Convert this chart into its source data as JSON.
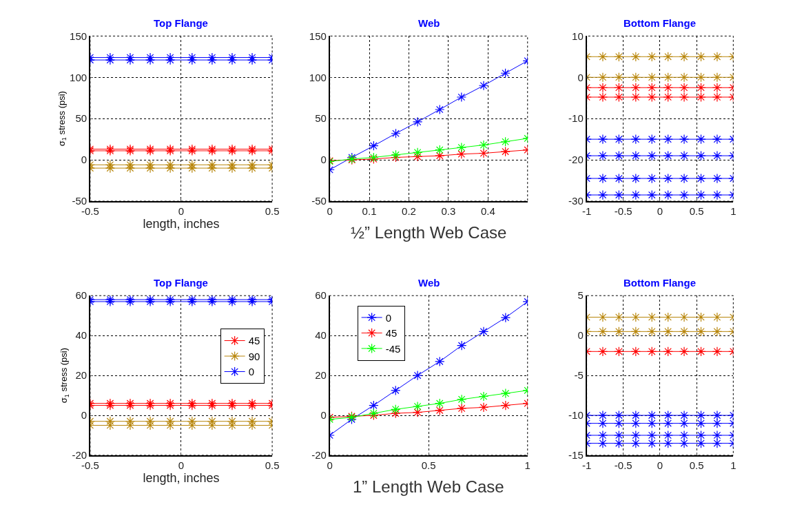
{
  "chart_data": [
    {
      "type": "line",
      "title": "Top Flange",
      "xlabel": "length, inches",
      "ylabel": "σ$_{1}$ stress (psi)",
      "xlim": [
        -0.5,
        0.5
      ],
      "xticks": [
        -0.5,
        0,
        0.5
      ],
      "ylim": [
        -50,
        150
      ],
      "yticks": [
        -50,
        0,
        50,
        100,
        150
      ],
      "grid": true,
      "marker": "cross",
      "line_style": "solid",
      "x": [
        -0.5,
        -0.39,
        -0.28,
        -0.17,
        -0.06,
        0.06,
        0.17,
        0.28,
        0.39,
        0.5
      ],
      "series": [
        {
          "color": "#0000ff",
          "values": [
            124,
            124,
            124,
            124,
            124,
            124,
            124,
            124,
            124,
            124
          ]
        },
        {
          "color": "#0000ff",
          "values": [
            121,
            121,
            121,
            121,
            121,
            121,
            121,
            121,
            121,
            121
          ]
        },
        {
          "color": "#ff0000",
          "values": [
            13,
            13,
            13,
            13,
            13,
            13,
            13,
            13,
            13,
            13
          ]
        },
        {
          "color": "#ff0000",
          "values": [
            11,
            11,
            11,
            11,
            11,
            11,
            11,
            11,
            11,
            11
          ]
        },
        {
          "color": "#b8860b",
          "values": [
            -6,
            -6,
            -6,
            -6,
            -6,
            -6,
            -6,
            -6,
            -6,
            -6
          ]
        },
        {
          "color": "#b8860b",
          "values": [
            -10,
            -10,
            -10,
            -10,
            -10,
            -10,
            -10,
            -10,
            -10,
            -10
          ]
        }
      ]
    },
    {
      "type": "line",
      "title": "Web",
      "xlim": [
        0,
        0.5
      ],
      "xticks": [
        0,
        0.1,
        0.2,
        0.3,
        0.4
      ],
      "ylim": [
        -50,
        150
      ],
      "yticks": [
        -50,
        0,
        50,
        100,
        150
      ],
      "grid": true,
      "marker": "cross",
      "line_style": "solid",
      "x": [
        0,
        0.056,
        0.111,
        0.167,
        0.222,
        0.278,
        0.333,
        0.389,
        0.444,
        0.5
      ],
      "annotations": [
        "½” Length Web Case"
      ],
      "series": [
        {
          "color": "#0000ff",
          "values": [
            -12,
            3,
            17,
            32,
            46,
            61,
            76,
            90,
            105,
            120
          ]
        },
        {
          "color": "#ff0000",
          "values": [
            -1,
            0,
            1,
            3,
            4,
            5,
            7,
            8,
            10,
            12
          ]
        },
        {
          "color": "#00ff00",
          "values": [
            -2,
            1,
            3,
            6,
            9,
            12,
            15,
            18,
            22,
            26
          ]
        }
      ]
    },
    {
      "type": "line",
      "title": "Bottom Flange",
      "xlim": [
        -1,
        1
      ],
      "xticks": [
        -1,
        -0.5,
        0,
        0.5,
        1
      ],
      "ylim": [
        -30,
        10
      ],
      "yticks": [
        -30,
        -20,
        -10,
        0,
        10
      ],
      "grid": true,
      "marker": "cross",
      "line_style": "solid",
      "x": [
        -1,
        -0.78,
        -0.56,
        -0.33,
        -0.11,
        0.11,
        0.33,
        0.56,
        0.78,
        1
      ],
      "series": [
        {
          "color": "#b8860b",
          "values": [
            5,
            5,
            5,
            5,
            5,
            5,
            5,
            5,
            5,
            5
          ]
        },
        {
          "color": "#b8860b",
          "values": [
            0,
            0,
            0,
            0,
            0,
            0,
            0,
            0,
            0,
            0
          ]
        },
        {
          "color": "#ff0000",
          "values": [
            -2.5,
            -2.5,
            -2.5,
            -2.5,
            -2.5,
            -2.5,
            -2.5,
            -2.5,
            -2.5,
            -2.5
          ]
        },
        {
          "color": "#ff0000",
          "values": [
            -4.8,
            -4.8,
            -4.8,
            -4.8,
            -4.8,
            -4.8,
            -4.8,
            -4.8,
            -4.8,
            -4.8
          ]
        },
        {
          "color": "#0000ff",
          "values": [
            -15,
            -15,
            -15,
            -15,
            -15,
            -15,
            -15,
            -15,
            -15,
            -15
          ]
        },
        {
          "color": "#0000ff",
          "values": [
            -19,
            -19,
            -19,
            -19,
            -19,
            -19,
            -19,
            -19,
            -19,
            -19
          ]
        },
        {
          "color": "#0000ff",
          "values": [
            -24.5,
            -24.5,
            -24.5,
            -24.5,
            -24.5,
            -24.5,
            -24.5,
            -24.5,
            -24.5,
            -24.5
          ]
        },
        {
          "color": "#0000ff",
          "values": [
            -28.5,
            -28.5,
            -28.5,
            -28.5,
            -28.5,
            -28.5,
            -28.5,
            -28.5,
            -28.5,
            -28.5
          ]
        }
      ]
    },
    {
      "type": "line",
      "title": "Top Flange",
      "xlabel": "length, inches",
      "ylabel": "σ$_{1}$ stress (psi)",
      "xlim": [
        -0.5,
        0.5
      ],
      "xticks": [
        -0.5,
        0,
        0.5
      ],
      "ylim": [
        -20,
        60
      ],
      "yticks": [
        -20,
        0,
        20,
        40,
        60
      ],
      "grid": true,
      "marker": "cross",
      "line_style": "solid",
      "legend": "right",
      "x": [
        -0.5,
        -0.39,
        -0.28,
        -0.17,
        -0.06,
        0.06,
        0.17,
        0.28,
        0.39,
        0.5
      ],
      "series": [
        {
          "name": "45",
          "color": "#ff0000",
          "values": [
            6,
            6,
            6,
            6,
            6,
            6,
            6,
            6,
            6,
            6
          ]
        },
        {
          "name": "90",
          "color": "#b8860b",
          "values": [
            -3,
            -3,
            -3,
            -3,
            -3,
            -3,
            -3,
            -3,
            -3,
            -3
          ]
        },
        {
          "name": "0",
          "color": "#0000ff",
          "values": [
            58,
            58,
            58,
            58,
            58,
            58,
            58,
            58,
            58,
            58
          ]
        },
        {
          "color": "#ff0000",
          "values": [
            5,
            5,
            5,
            5,
            5,
            5,
            5,
            5,
            5,
            5
          ]
        },
        {
          "color": "#b8860b",
          "values": [
            -5,
            -5,
            -5,
            -5,
            -5,
            -5,
            -5,
            -5,
            -5,
            -5
          ]
        },
        {
          "color": "#0000ff",
          "values": [
            57,
            57,
            57,
            57,
            57,
            57,
            57,
            57,
            57,
            57
          ]
        }
      ]
    },
    {
      "type": "line",
      "title": "Web",
      "xlim": [
        0,
        1
      ],
      "xticks": [
        0,
        0.5,
        1
      ],
      "ylim": [
        -20,
        60
      ],
      "yticks": [
        -20,
        0,
        20,
        40,
        60
      ],
      "grid": true,
      "marker": "cross",
      "line_style": "solid",
      "legend": "top left",
      "x": [
        0,
        0.111,
        0.222,
        0.333,
        0.444,
        0.556,
        0.667,
        0.778,
        0.889,
        1
      ],
      "annotations": [
        "1” Length Web Case"
      ],
      "series": [
        {
          "name": "0",
          "color": "#0000ff",
          "values": [
            -10,
            -2,
            5,
            12.5,
            20,
            27,
            35,
            42,
            49,
            57
          ]
        },
        {
          "name": "45",
          "color": "#ff0000",
          "values": [
            -1,
            -0.5,
            0,
            1,
            1.5,
            2.5,
            3.5,
            4,
            5,
            6
          ]
        },
        {
          "name": "-45",
          "color": "#00ff00",
          "values": [
            -2,
            -1,
            1,
            3,
            4.5,
            6,
            8,
            9.5,
            11,
            12.5
          ]
        }
      ]
    },
    {
      "type": "line",
      "title": "Bottom Flange",
      "xlim": [
        -1,
        1
      ],
      "xticks": [
        -1,
        -0.5,
        0,
        0.5,
        1
      ],
      "ylim": [
        -15,
        5
      ],
      "yticks": [
        -15,
        -10,
        -5,
        0,
        5
      ],
      "grid": true,
      "marker": "cross",
      "line_style": "solid",
      "x": [
        -1,
        -0.78,
        -0.56,
        -0.33,
        -0.11,
        0.11,
        0.33,
        0.56,
        0.78,
        1
      ],
      "series": [
        {
          "color": "#b8860b",
          "values": [
            2.3,
            2.3,
            2.3,
            2.3,
            2.3,
            2.3,
            2.3,
            2.3,
            2.3,
            2.3
          ]
        },
        {
          "color": "#b8860b",
          "values": [
            0.5,
            0.5,
            0.5,
            0.5,
            0.5,
            0.5,
            0.5,
            0.5,
            0.5,
            0.5
          ]
        },
        {
          "color": "#ff0000",
          "values": [
            -2,
            -2,
            -2,
            -2,
            -2,
            -2,
            -2,
            -2,
            -2,
            -2
          ]
        },
        {
          "color": "#0000ff",
          "values": [
            -10,
            -10,
            -10,
            -10,
            -10,
            -10,
            -10,
            -10,
            -10,
            -10
          ]
        },
        {
          "color": "#0000ff",
          "values": [
            -11,
            -11,
            -11,
            -11,
            -11,
            -11,
            -11,
            -11,
            -11,
            -11
          ]
        },
        {
          "color": "#0000ff",
          "values": [
            -12.5,
            -12.5,
            -12.5,
            -12.5,
            -12.5,
            -12.5,
            -12.5,
            -12.5,
            -12.5,
            -12.5
          ]
        },
        {
          "color": "#0000ff",
          "values": [
            -13.5,
            -13.5,
            -13.5,
            -13.5,
            -13.5,
            -13.5,
            -13.5,
            -13.5,
            -13.5,
            -13.5
          ]
        }
      ]
    }
  ]
}
